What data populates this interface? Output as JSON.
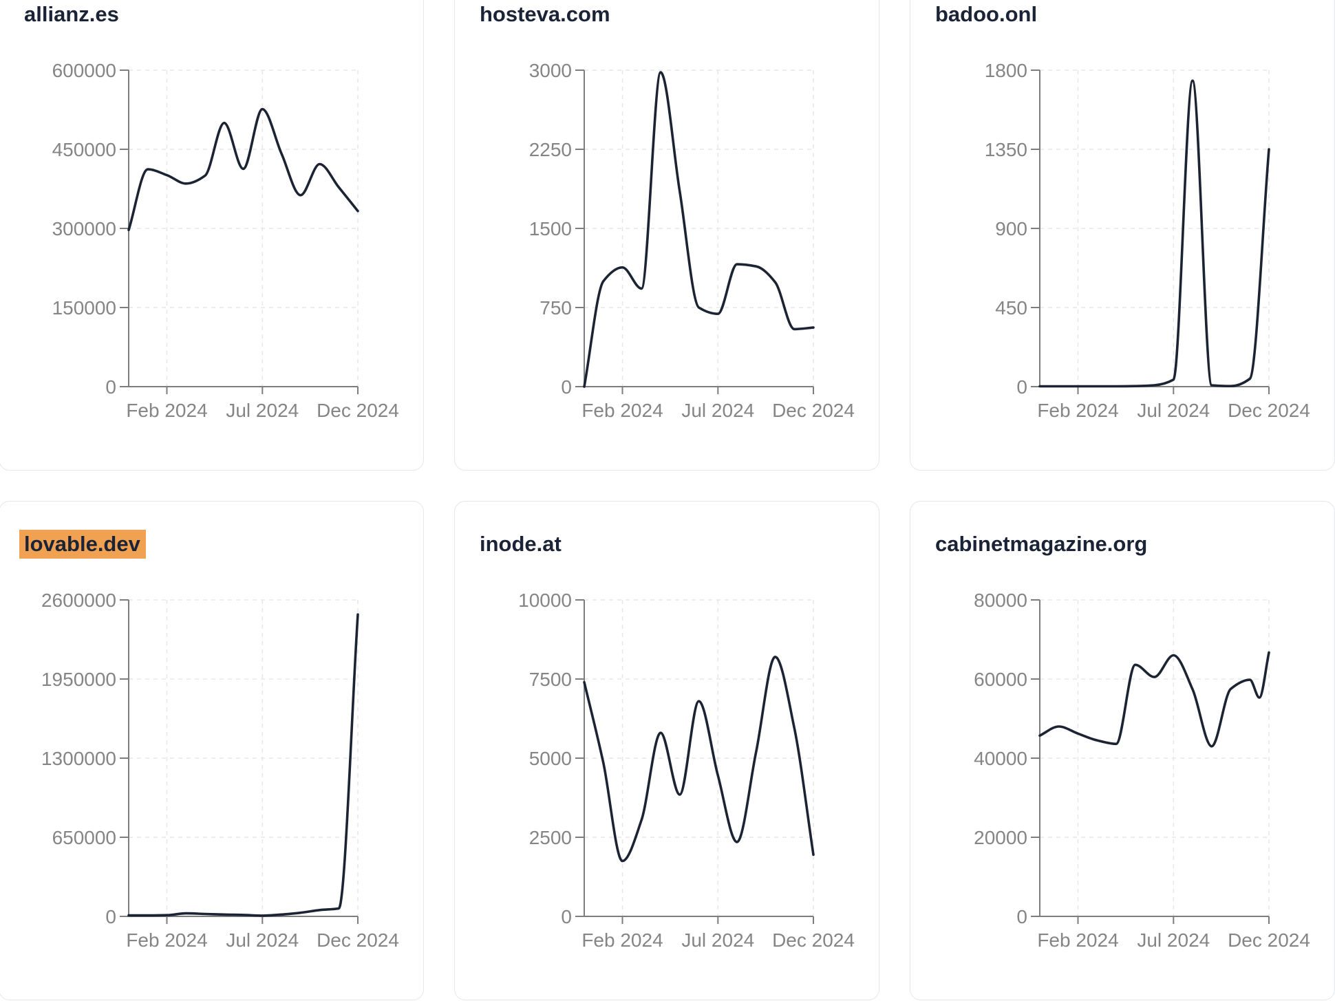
{
  "page": {
    "background": "#ffffff",
    "description_visible_elements": "grid of six website-traffic line chart cards"
  },
  "theme": {
    "line_color": "#1c2333",
    "axis_color": "#7d7d7d",
    "tick_label_color": "#858585",
    "grid_color": "#e7e7e7",
    "title_color": "#1b2336",
    "card_border_color": "#e3e7ef",
    "card_background": "#ffffff",
    "highlight_color": "#f0a252"
  },
  "x_axis": {
    "tick_labels": [
      "Feb 2024",
      "Jul 2024",
      "Dec 2024"
    ],
    "tick_month_positions": [
      2,
      7,
      12
    ],
    "range_months": [
      0,
      12
    ],
    "start_month": "Dec 2023",
    "end_month": "Dec 2024"
  },
  "chart_data": [
    {
      "type": "line",
      "title": "allianz.es",
      "highlighted": false,
      "ylim": [
        0,
        600000
      ],
      "y_ticks": [
        0,
        150000,
        300000,
        450000,
        600000
      ],
      "x_months_since_dec_2023": [
        0,
        1,
        2,
        3,
        4,
        5,
        6,
        7,
        8,
        9,
        10,
        11,
        12
      ],
      "points": [
        [
          0,
          297000
        ],
        [
          1,
          412000
        ],
        [
          2,
          401000
        ],
        [
          3,
          385000
        ],
        [
          4,
          400000
        ],
        [
          5,
          500000
        ],
        [
          6,
          413000
        ],
        [
          7,
          526000
        ],
        [
          8,
          442000
        ],
        [
          9,
          363000
        ],
        [
          10,
          422000
        ],
        [
          11,
          378000
        ],
        [
          12,
          333000
        ]
      ]
    },
    {
      "type": "line",
      "title": "hosteva.com",
      "highlighted": false,
      "ylim": [
        0,
        3000
      ],
      "y_ticks": [
        0,
        750,
        1500,
        2250,
        3000
      ],
      "x_months_since_dec_2023": [
        0,
        1,
        2,
        3,
        4,
        5,
        6,
        7,
        8,
        9,
        10,
        11,
        12
      ],
      "points": [
        [
          0,
          0
        ],
        [
          1,
          1000
        ],
        [
          2,
          1130
        ],
        [
          3,
          930
        ],
        [
          4,
          2980
        ],
        [
          5,
          1850
        ],
        [
          6,
          750
        ],
        [
          7,
          690
        ],
        [
          8,
          1160
        ],
        [
          9,
          1140
        ],
        [
          10,
          990
        ],
        [
          11,
          545
        ],
        [
          12,
          560
        ]
      ]
    },
    {
      "type": "line",
      "title": "badoo.onl",
      "highlighted": false,
      "ylim": [
        0,
        1800
      ],
      "y_ticks": [
        0,
        450,
        900,
        1350,
        1800
      ],
      "x_months_since_dec_2023": [
        0,
        1,
        2,
        3,
        4,
        5,
        6,
        7,
        8,
        9,
        10,
        11,
        12
      ],
      "points": [
        [
          0,
          2
        ],
        [
          1,
          2
        ],
        [
          2,
          2
        ],
        [
          3,
          2
        ],
        [
          4,
          2
        ],
        [
          5,
          3
        ],
        [
          6,
          8
        ],
        [
          7,
          40
        ],
        [
          8,
          1740
        ],
        [
          9,
          8
        ],
        [
          10,
          3
        ],
        [
          11,
          45
        ],
        [
          12,
          1350
        ]
      ]
    },
    {
      "type": "line",
      "title": "lovable.dev",
      "highlighted": true,
      "ylim": [
        0,
        2600000
      ],
      "y_ticks": [
        0,
        650000,
        1300000,
        1950000,
        2600000
      ],
      "x_months_since_dec_2023": [
        0,
        1,
        2,
        3,
        4,
        5,
        6,
        7,
        8,
        9,
        10,
        11,
        12
      ],
      "points": [
        [
          0,
          8000
        ],
        [
          1,
          8000
        ],
        [
          2,
          10000
        ],
        [
          3,
          25000
        ],
        [
          4,
          20000
        ],
        [
          5,
          15000
        ],
        [
          6,
          12000
        ],
        [
          7,
          6000
        ],
        [
          8,
          15000
        ],
        [
          9,
          30000
        ],
        [
          10,
          52000
        ],
        [
          11,
          65000
        ],
        [
          12,
          2480000
        ]
      ]
    },
    {
      "type": "line",
      "title": "inode.at",
      "highlighted": false,
      "ylim": [
        0,
        10000
      ],
      "y_ticks": [
        0,
        2500,
        5000,
        7500,
        10000
      ],
      "x_months_since_dec_2023": [
        0,
        1,
        2,
        3,
        4,
        5,
        6,
        7,
        8,
        9,
        10,
        11,
        12
      ],
      "points": [
        [
          0,
          7400
        ],
        [
          1,
          4850
        ],
        [
          2,
          1750
        ],
        [
          3,
          3050
        ],
        [
          4,
          5800
        ],
        [
          5,
          3850
        ],
        [
          6,
          6800
        ],
        [
          7,
          4450
        ],
        [
          8,
          2350
        ],
        [
          9,
          5200
        ],
        [
          10,
          8200
        ],
        [
          11,
          5950
        ],
        [
          12,
          1950
        ]
      ]
    },
    {
      "type": "line",
      "title": "cabinetmagazine.org",
      "highlighted": false,
      "ylim": [
        0,
        80000
      ],
      "y_ticks": [
        0,
        20000,
        40000,
        60000,
        80000
      ],
      "x_months_since_dec_2023": [
        0,
        1,
        2,
        3,
        4,
        5,
        6,
        7,
        8,
        9,
        10,
        11,
        11.5,
        12
      ],
      "points": [
        [
          0,
          45700
        ],
        [
          1,
          48000
        ],
        [
          2,
          46200
        ],
        [
          3,
          44500
        ],
        [
          4,
          43600
        ],
        [
          5,
          63600
        ],
        [
          6,
          60500
        ],
        [
          7,
          66000
        ],
        [
          8,
          57400
        ],
        [
          9,
          43000
        ],
        [
          10,
          57500
        ],
        [
          11,
          59800
        ],
        [
          11.5,
          55300
        ],
        [
          12,
          66700
        ]
      ]
    }
  ]
}
